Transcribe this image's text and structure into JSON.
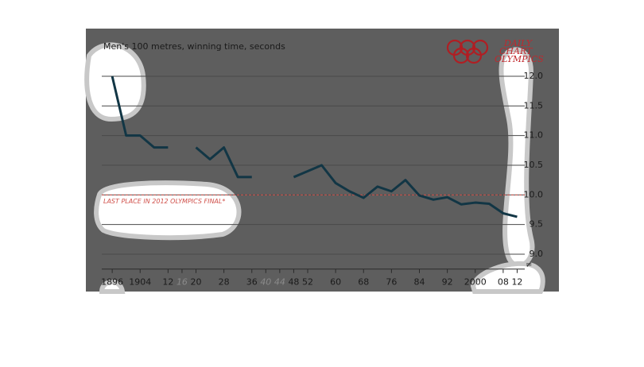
{
  "chart_data": {
    "type": "line",
    "title": "Men's 100 metres, winning time, seconds",
    "logo_lines": [
      "DAILY",
      "CHART",
      "OLYMPICS"
    ],
    "x": [
      1896,
      1900,
      1904,
      1908,
      1912,
      1916,
      1920,
      1924,
      1928,
      1932,
      1936,
      1940,
      1944,
      1948,
      1952,
      1956,
      1960,
      1964,
      1968,
      1972,
      1976,
      1980,
      1984,
      1988,
      1992,
      1996,
      2000,
      2004,
      2008,
      2012
    ],
    "series": [
      {
        "name": "Winning time",
        "color": "#123645",
        "values": [
          12.0,
          11.0,
          11.0,
          10.8,
          10.8,
          null,
          10.8,
          10.6,
          10.8,
          10.3,
          10.3,
          null,
          null,
          10.3,
          10.4,
          10.5,
          10.2,
          10.06,
          9.95,
          10.14,
          10.06,
          10.25,
          9.99,
          9.92,
          9.96,
          9.84,
          9.87,
          9.85,
          9.69,
          9.63
        ]
      }
    ],
    "xlim": [
      1888,
      2016
    ],
    "xticks": [
      {
        "value": 1896,
        "label": "1896"
      },
      {
        "value": 1904,
        "label": "1904"
      },
      {
        "value": 1912,
        "label": "12"
      },
      {
        "value": 1916,
        "label": "16"
      },
      {
        "value": 1920,
        "label": "20"
      },
      {
        "value": 1928,
        "label": "28"
      },
      {
        "value": 1936,
        "label": "36"
      },
      {
        "value": 1940,
        "label": "40"
      },
      {
        "value": 1944,
        "label": "44"
      },
      {
        "value": 1948,
        "label": "48"
      },
      {
        "value": 1952,
        "label": "52"
      },
      {
        "value": 1960,
        "label": "60"
      },
      {
        "value": 1968,
        "label": "68"
      },
      {
        "value": 1976,
        "label": "76"
      },
      {
        "value": 1984,
        "label": "84"
      },
      {
        "value": 1992,
        "label": "92"
      },
      {
        "value": 2000,
        "label": "2000"
      },
      {
        "value": 2008,
        "label": "08"
      },
      {
        "value": 2012,
        "label": "12"
      }
    ],
    "muted_xticks": [
      1916,
      1940,
      1944
    ],
    "ylim": [
      8.75,
      12.25
    ],
    "yticks": [
      {
        "value": 9,
        "label": "9.0"
      },
      {
        "value": 9.5,
        "label": "9.5"
      },
      {
        "value": 10,
        "label": "10.0"
      },
      {
        "value": 10.5,
        "label": "10.5"
      },
      {
        "value": 11,
        "label": "11.0"
      },
      {
        "value": 11.5,
        "label": "11.5"
      },
      {
        "value": 12,
        "label": "12.0"
      }
    ],
    "grid": true,
    "reference_line": {
      "value": 10,
      "label": "LAST PLACE IN 2012 OLYMPICS FINAL*",
      "color": "#d0504a"
    }
  }
}
